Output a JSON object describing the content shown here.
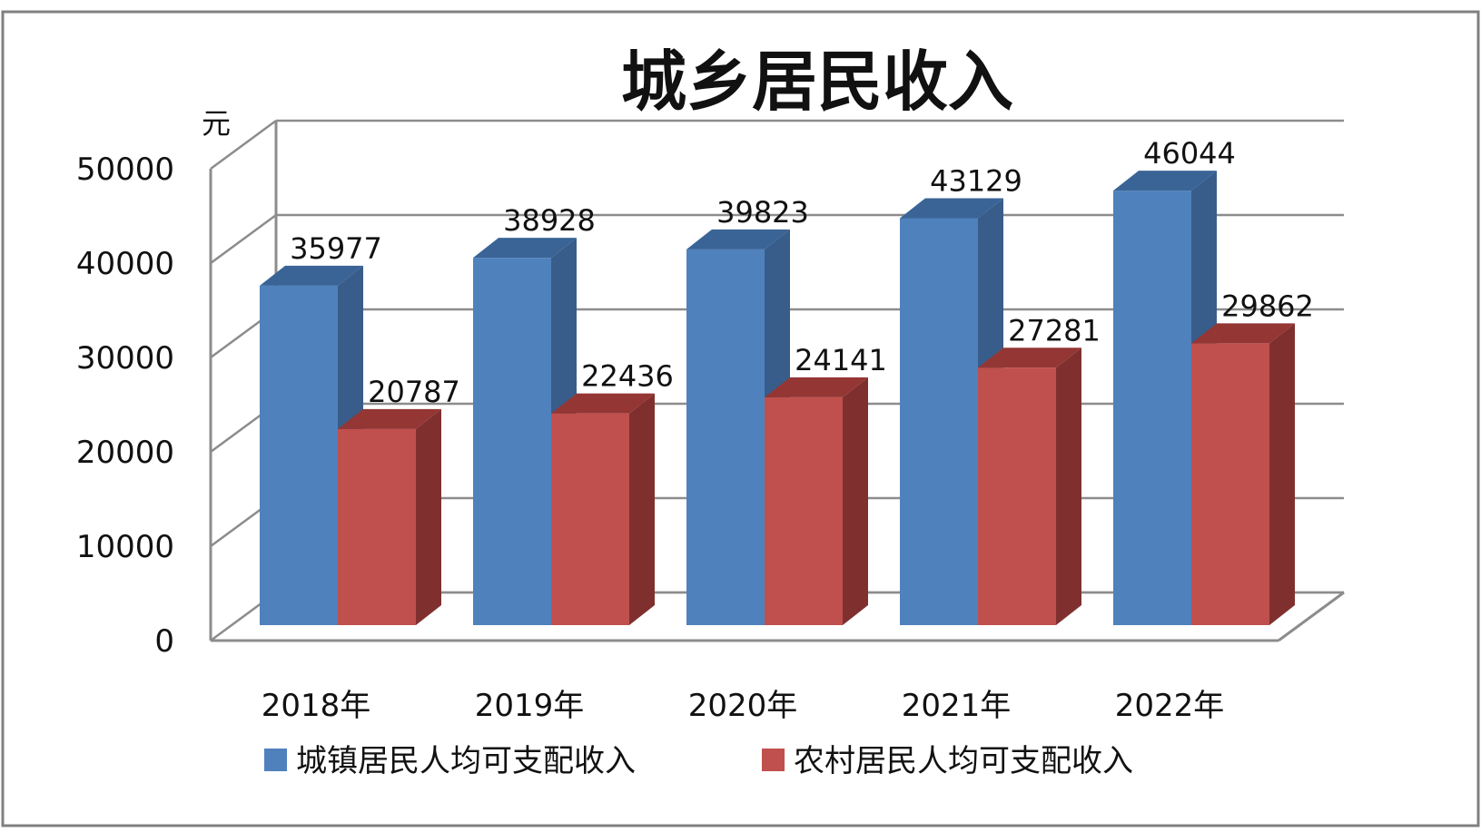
{
  "chart_data": {
    "type": "bar",
    "title": "城乡居民收入",
    "ylabel": "元",
    "xlabel": "",
    "categories": [
      "2018年",
      "2019年",
      "2020年",
      "2021年",
      "2022年"
    ],
    "series": [
      {
        "name": "城镇居民人均可支配收入",
        "values": [
          35977,
          38928,
          39823,
          43129,
          46044
        ],
        "color": "#4F81BD",
        "side_color": "#385D8A",
        "top_color": "#3A6496"
      },
      {
        "name": "农村居民人均可支配收入",
        "values": [
          20787,
          22436,
          24141,
          27281,
          29862
        ],
        "color": "#C0504D",
        "side_color": "#7F302E",
        "top_color": "#943634"
      }
    ],
    "ylim": [
      0,
      50000
    ],
    "yticks": [
      0,
      10000,
      20000,
      30000,
      40000,
      50000
    ],
    "grid": true,
    "legend_position": "bottom",
    "style": "3d-clustered-column"
  }
}
